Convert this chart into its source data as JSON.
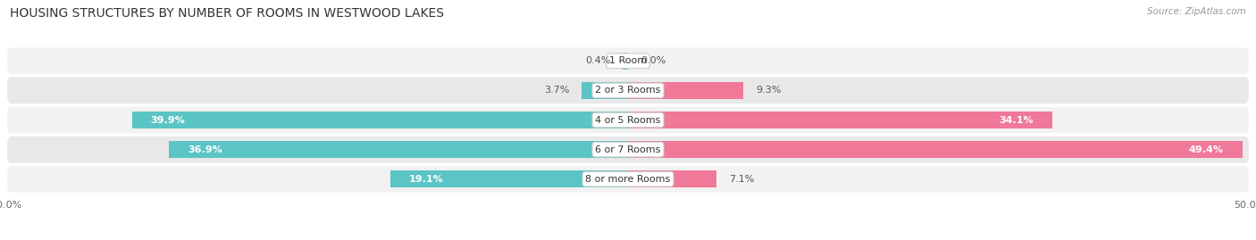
{
  "title": "HOUSING STRUCTURES BY NUMBER OF ROOMS IN WESTWOOD LAKES",
  "source": "Source: ZipAtlas.com",
  "categories": [
    "1 Room",
    "2 or 3 Rooms",
    "4 or 5 Rooms",
    "6 or 7 Rooms",
    "8 or more Rooms"
  ],
  "owner_values": [
    0.4,
    3.7,
    39.9,
    36.9,
    19.1
  ],
  "renter_values": [
    0.0,
    9.3,
    34.1,
    49.4,
    7.1
  ],
  "owner_color": "#5BC4C4",
  "renter_color": "#F07899",
  "row_bg_color_odd": "#F2F2F2",
  "row_bg_color_even": "#E8E8E8",
  "xlim": [
    -50,
    50
  ],
  "title_fontsize": 10,
  "label_fontsize": 8,
  "category_fontsize": 8,
  "bar_height": 0.58,
  "background_color": "#FFFFFF",
  "inside_label_color": "#FFFFFF",
  "outside_label_color": "#555555",
  "large_threshold": 10
}
